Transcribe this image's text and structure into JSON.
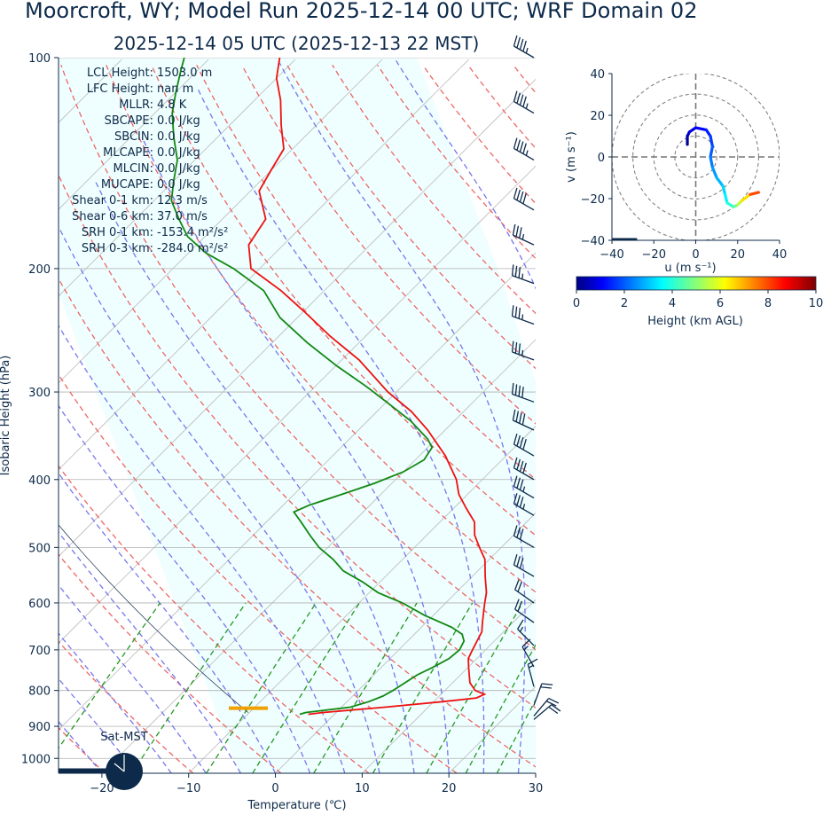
{
  "title": "Moorcroft, WY; Model Run 2025-12-14 00 UTC; WRF Domain 02",
  "subtitle": "2025-12-14 05 UTC  (2025-12-13 22 MST)",
  "indices": [
    {
      "label": "LCL Height:",
      "value": "1503.0 m"
    },
    {
      "label": "LFC Height:",
      "value": "nan m"
    },
    {
      "label": "MLLR:",
      "value": "4.8 K"
    },
    {
      "label": "SBCAPE:",
      "value": "0.0 J/kg"
    },
    {
      "label": "SBCIN:",
      "value": "0.0 J/kg"
    },
    {
      "label": "MLCAPE:",
      "value": "0.0 J/kg"
    },
    {
      "label": "MLCIN:",
      "value": "0.0 J/kg"
    },
    {
      "label": "MUCAPE:",
      "value": "0.0 J/kg"
    },
    {
      "label": "Shear 0-1 km:",
      "value": "12.3 m/s"
    },
    {
      "label": "Shear 0-6 km:",
      "value": "37.0 m/s"
    },
    {
      "label": "SRH 0-1 km:",
      "value": "-153.4 m²/s²"
    },
    {
      "label": "SRH 0-3 km:",
      "value": "-284.0 m²/s²"
    }
  ],
  "clock_label": "Sat-MST",
  "colors": {
    "temperature": "#ee1111",
    "dewpoint": "#118811",
    "dry_adiabat": "#ee6666",
    "moist_adiabat": "#7777ee",
    "mixing_ratio": "#229922",
    "cloud_fill": "#effefe",
    "axis": "#0d2a4a",
    "lcl_marker": "#f0a000"
  },
  "chart_data": [
    {
      "type": "line",
      "kind": "skew-T",
      "xlabel": "Temperature (℃)",
      "ylabel": "Isobaric Height (hPa)",
      "xlim": [
        -25,
        30
      ],
      "ylim": [
        1050,
        100
      ],
      "yscale": "log",
      "x_ticks": [
        -20,
        -10,
        0,
        10,
        20,
        30
      ],
      "x_tick_labels": [
        "−20",
        "−10",
        "0",
        "10",
        "20",
        "30"
      ],
      "y_ticks": [
        100,
        200,
        300,
        400,
        500,
        600,
        700,
        800,
        900,
        1000
      ],
      "grid": true,
      "series": [
        {
          "role": "temperature",
          "points": [
            [
              -3.0,
              865
            ],
            [
              -1.5,
              860
            ],
            [
              5,
              845
            ],
            [
              11,
              830
            ],
            [
              14.5,
              820
            ],
            [
              15,
              810
            ],
            [
              13.5,
              800
            ],
            [
              12,
              780
            ],
            [
              11,
              760
            ],
            [
              10,
              740
            ],
            [
              9,
              720
            ],
            [
              8.5,
              700
            ],
            [
              8,
              680
            ],
            [
              7.5,
              660
            ],
            [
              6.5,
              640
            ],
            [
              5.5,
              620
            ],
            [
              4.5,
              600
            ],
            [
              3.5,
              580
            ],
            [
              1.5,
              550
            ],
            [
              -0.5,
              520
            ],
            [
              -2.5,
              500
            ],
            [
              -4.5,
              480
            ],
            [
              -6,
              460
            ],
            [
              -8.5,
              440
            ],
            [
              -11,
              420
            ],
            [
              -13,
              400
            ],
            [
              -17,
              370
            ],
            [
              -22,
              340
            ],
            [
              -26,
              320
            ],
            [
              -31,
              300
            ],
            [
              -38,
              270
            ],
            [
              -44,
              250
            ],
            [
              -50,
              230
            ],
            [
              -55,
              215
            ],
            [
              -61,
              200
            ],
            [
              -64,
              185
            ],
            [
              -65,
              170
            ],
            [
              -69,
              155
            ],
            [
              -70,
              145
            ],
            [
              -71,
              135
            ],
            [
              -74,
              125
            ],
            [
              -77,
              115
            ],
            [
              -80,
              107
            ],
            [
              -82,
              100
            ]
          ]
        },
        {
          "role": "dewpoint",
          "points": [
            [
              -4.0,
              865
            ],
            [
              -3.5,
              860
            ],
            [
              -2,
              855
            ],
            [
              1,
              845
            ],
            [
              2.5,
              830
            ],
            [
              3.5,
              815
            ],
            [
              4,
              800
            ],
            [
              4.5,
              780
            ],
            [
              5,
              760
            ],
            [
              6,
              740
            ],
            [
              6.8,
              720
            ],
            [
              7,
              700
            ],
            [
              6.5,
              680
            ],
            [
              5.5,
              665
            ],
            [
              3.5,
              650
            ],
            [
              -1,
              625
            ],
            [
              -5,
              600
            ],
            [
              -9,
              580
            ],
            [
              -12,
              560
            ],
            [
              -15.5,
              540
            ],
            [
              -18,
              520
            ],
            [
              -21,
              500
            ],
            [
              -23.5,
              480
            ],
            [
              -26,
              460
            ],
            [
              -28,
              445
            ],
            [
              -27,
              435
            ],
            [
              -24.5,
              420
            ],
            [
              -22,
              405
            ],
            [
              -20,
              390
            ],
            [
              -19,
              375
            ],
            [
              -19.5,
              360
            ],
            [
              -21,
              350
            ],
            [
              -25,
              330
            ],
            [
              -30,
              310
            ],
            [
              -34,
              295
            ],
            [
              -40,
              275
            ],
            [
              -46,
              255
            ],
            [
              -52,
              235
            ],
            [
              -57,
              215
            ],
            [
              -63,
              200
            ],
            [
              -68,
              190
            ],
            [
              -72,
              180
            ],
            [
              -75,
              170
            ],
            [
              -78,
              160
            ],
            [
              -80,
              150
            ],
            [
              -82,
              140
            ],
            [
              -85,
              130
            ],
            [
              -88,
              120
            ],
            [
              -90,
              112
            ],
            [
              -92,
              104
            ],
            [
              -93,
              100
            ]
          ]
        }
      ]
    },
    {
      "type": "line",
      "kind": "hodograph",
      "xlabel": "u (m s⁻¹)",
      "ylabel": "v (m s⁻¹)",
      "xlim": [
        -40,
        40
      ],
      "ylim": [
        -40,
        40
      ],
      "x_ticks": [
        -40,
        -20,
        0,
        20,
        40
      ],
      "x_tick_labels": [
        "−40",
        "−20",
        "0",
        "20",
        "40"
      ],
      "y_ticks": [
        -40,
        -20,
        0,
        20,
        40
      ],
      "y_tick_labels": [
        "−40",
        "−20",
        "0",
        "20",
        "40"
      ],
      "rings": [
        10,
        20,
        30,
        40
      ],
      "points": [
        [
          -4,
          6
        ],
        [
          -4,
          10
        ],
        [
          -3,
          12
        ],
        [
          0,
          14
        ],
        [
          5,
          13
        ],
        [
          7,
          10
        ],
        [
          8,
          5
        ],
        [
          7,
          0
        ],
        [
          8,
          -5
        ],
        [
          10,
          -10
        ],
        [
          13,
          -14
        ],
        [
          14,
          -18
        ],
        [
          15,
          -22
        ],
        [
          18,
          -24
        ],
        [
          20,
          -23
        ],
        [
          22,
          -21
        ],
        [
          26,
          -18
        ],
        [
          30,
          -17
        ]
      ],
      "heights_km": [
        0.2,
        0.5,
        0.8,
        1.1,
        1.4,
        1.7,
        2.0,
        2.3,
        2.6,
        2.9,
        3.2,
        3.5,
        4.0,
        4.6,
        5.5,
        6.5,
        8.0,
        9.5
      ]
    },
    {
      "type": "heatmap",
      "kind": "colorbar",
      "label": "Height (km AGL)",
      "range": [
        0,
        10
      ],
      "ticks": [
        0,
        2,
        4,
        6,
        8,
        10
      ]
    }
  ],
  "wind_barbs": [
    {
      "p": 100,
      "spd": 45,
      "dir": 300
    },
    {
      "p": 120,
      "spd": 45,
      "dir": 300
    },
    {
      "p": 140,
      "spd": 45,
      "dir": 300
    },
    {
      "p": 165,
      "spd": 40,
      "dir": 300
    },
    {
      "p": 185,
      "spd": 35,
      "dir": 295
    },
    {
      "p": 210,
      "spd": 35,
      "dir": 290
    },
    {
      "p": 240,
      "spd": 35,
      "dir": 290
    },
    {
      "p": 270,
      "spd": 35,
      "dir": 290
    },
    {
      "p": 310,
      "spd": 40,
      "dir": 290
    },
    {
      "p": 340,
      "spd": 40,
      "dir": 295
    },
    {
      "p": 370,
      "spd": 40,
      "dir": 300
    },
    {
      "p": 400,
      "spd": 40,
      "dir": 300
    },
    {
      "p": 425,
      "spd": 35,
      "dir": 300
    },
    {
      "p": 450,
      "spd": 35,
      "dir": 300
    },
    {
      "p": 500,
      "spd": 30,
      "dir": 300
    },
    {
      "p": 550,
      "spd": 30,
      "dir": 300
    },
    {
      "p": 600,
      "spd": 20,
      "dir": 305
    },
    {
      "p": 640,
      "spd": 20,
      "dir": 305
    },
    {
      "p": 690,
      "spd": 15,
      "dir": 315
    },
    {
      "p": 740,
      "spd": 15,
      "dir": 330
    },
    {
      "p": 790,
      "spd": 15,
      "dir": 345
    },
    {
      "p": 840,
      "spd": 20,
      "dir": 20
    },
    {
      "p": 870,
      "spd": 20,
      "dir": 40
    },
    {
      "p": 880,
      "spd": 20,
      "dir": 50
    }
  ]
}
